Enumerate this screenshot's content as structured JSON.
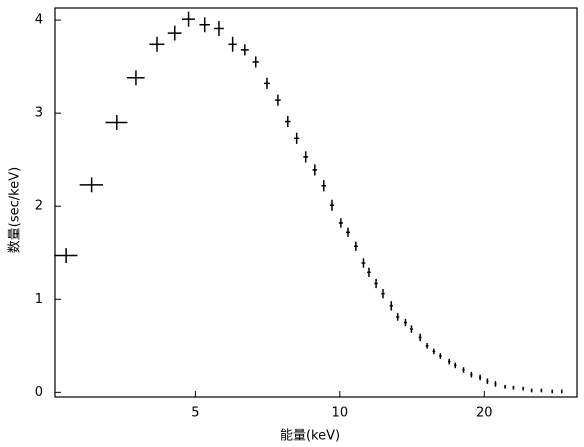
{
  "chart_data": {
    "type": "scatter",
    "xlabel": "能量(keV)",
    "ylabel": "数量(sec/keV)",
    "x": [
      2.69,
      3.04,
      3.43,
      3.76,
      4.16,
      4.53,
      4.84,
      5.23,
      5.6,
      5.98,
      6.34,
      6.68,
      7.05,
      7.43,
      7.79,
      8.13,
      8.49,
      8.87,
      9.26,
      9.63,
      10.05,
      10.4,
      10.8,
      11.2,
      11.5,
      11.9,
      12.3,
      12.8,
      13.2,
      13.7,
      14.1,
      14.7,
      15.2,
      15.7,
      16.2,
      16.9,
      17.4,
      18.1,
      18.8,
      19.6,
      20.3,
      21.1,
      22.1,
      23.0,
      24.1,
      25.1,
      26.3,
      27.7,
      29.0
    ],
    "y": [
      1.47,
      2.23,
      2.9,
      3.38,
      3.74,
      3.86,
      4.01,
      3.95,
      3.91,
      3.74,
      3.68,
      3.55,
      3.32,
      3.14,
      2.91,
      2.73,
      2.53,
      2.39,
      2.22,
      2.01,
      1.82,
      1.72,
      1.57,
      1.39,
      1.29,
      1.17,
      1.06,
      0.93,
      0.81,
      0.75,
      0.68,
      0.59,
      0.5,
      0.44,
      0.39,
      0.33,
      0.29,
      0.24,
      0.19,
      0.16,
      0.12,
      0.09,
      0.06,
      0.05,
      0.04,
      0.02,
      0.02,
      0.01,
      0.01
    ],
    "xerr": [
      0.15,
      0.17,
      0.18,
      0.16,
      0.15,
      0.15,
      0.15,
      0.13,
      0.13,
      0.12,
      0.12,
      0.1,
      0.1,
      0.1,
      0.1,
      0.1,
      0.1,
      0.1,
      0.1,
      0.1,
      0.1,
      0.1,
      0.1,
      0.1,
      0.1,
      0.1,
      0.1,
      0.1,
      0.1,
      0.1,
      0.1,
      0.1,
      0.1,
      0.1,
      0.1,
      0.1,
      0.1,
      0.1,
      0.1,
      0.1,
      0.1,
      0.1,
      0.1,
      0.1,
      0.1,
      0.1,
      0.1,
      0.1,
      0.1
    ],
    "yerr": [
      0.08,
      0.08,
      0.08,
      0.08,
      0.08,
      0.08,
      0.08,
      0.08,
      0.08,
      0.08,
      0.06,
      0.06,
      0.06,
      0.06,
      0.06,
      0.06,
      0.06,
      0.06,
      0.06,
      0.06,
      0.05,
      0.05,
      0.05,
      0.05,
      0.05,
      0.05,
      0.05,
      0.05,
      0.04,
      0.04,
      0.04,
      0.04,
      0.03,
      0.03,
      0.03,
      0.03,
      0.03,
      0.03,
      0.03,
      0.03,
      0.03,
      0.03,
      0.02,
      0.02,
      0.02,
      0.02,
      0.02,
      0.02,
      0.02
    ],
    "xscale": "log",
    "color": "#000000",
    "xlim": [
      2.55,
      31.2
    ],
    "ylim": [
      -0.05,
      4.13
    ],
    "xticks": [
      5,
      10,
      20
    ],
    "yticks": [
      0,
      1,
      2,
      3,
      4
    ]
  }
}
